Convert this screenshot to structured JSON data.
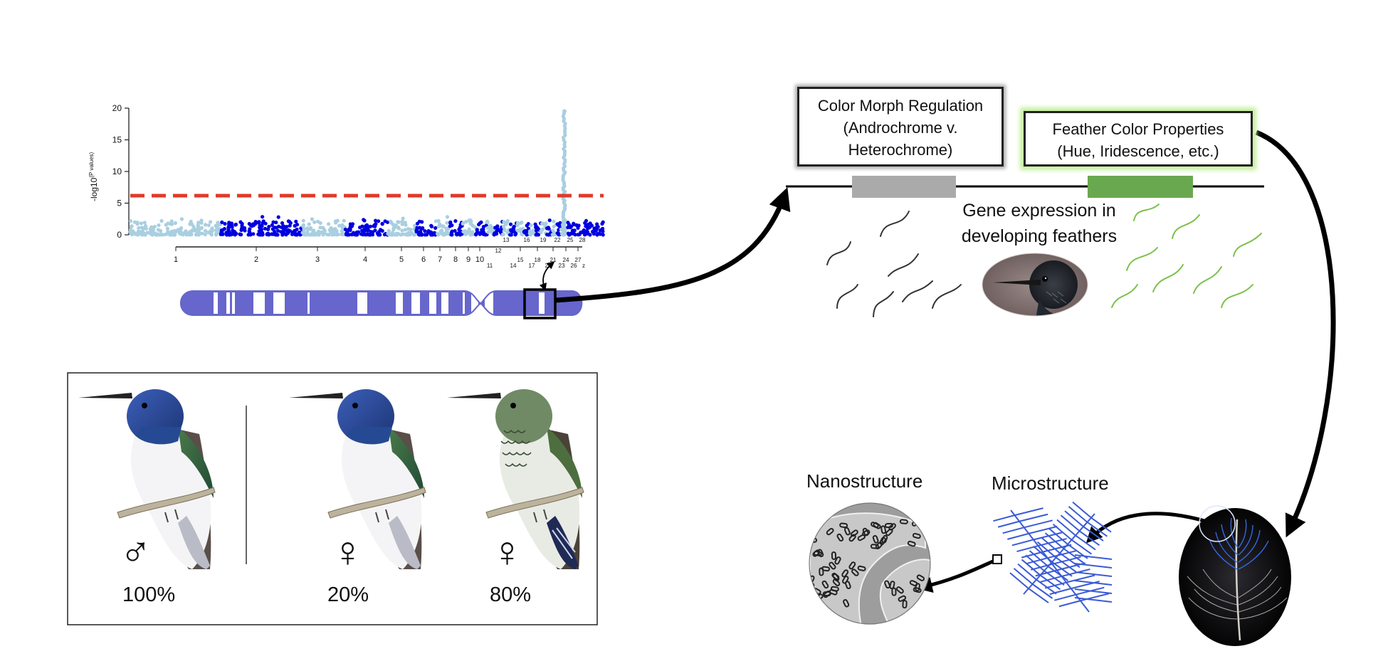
{
  "manhattan": {
    "ylabel": "-log10",
    "ylabel_sup": "(P values)",
    "y_ticks": [
      "0",
      "5",
      "10",
      "15",
      "20"
    ],
    "x_ticks": [
      "1",
      "2",
      "3",
      "4",
      "5",
      "6",
      "7",
      "8",
      "9",
      "10",
      "11",
      "12",
      "13",
      "14",
      "15",
      "16",
      "17",
      "18",
      "19",
      "20",
      "21",
      "22",
      "23",
      "24",
      "25",
      "26",
      "27",
      "28",
      "z"
    ]
  },
  "chart_data": {
    "type": "scatter",
    "title": "",
    "ylabel": "-log10(P values)",
    "ylim": [
      0,
      20
    ],
    "threshold": 6,
    "categories": [
      "1",
      "2",
      "3",
      "4",
      "5",
      "6",
      "7",
      "8",
      "9",
      "10",
      "11",
      "12",
      "13",
      "14",
      "15",
      "16",
      "17",
      "18",
      "19",
      "20",
      "21",
      "22",
      "23",
      "24",
      "25",
      "26",
      "27",
      "28",
      "z"
    ],
    "highlight_category": "27",
    "peak_value": 19.5,
    "colors": {
      "light": "#a9cfe0",
      "dark": "#0000e0",
      "threshold": "#e03a2a",
      "highlight_label": "#e03a2a"
    }
  },
  "boxes": {
    "morph_line1": "Color Morph Regulation",
    "morph_line2": "(Androchrome v.",
    "morph_line3": "Heterochrome)",
    "feather_line1": "Feather Color Properties",
    "feather_line2": "(Hue, Iridescence, etc.)"
  },
  "gene_expression": {
    "line1": "Gene expression in",
    "line2": "developing feathers"
  },
  "structures": {
    "nano": "Nanostructure",
    "micro": "Microstructure"
  },
  "morphs": [
    {
      "symbol": "♂",
      "percent": "100%"
    },
    {
      "symbol": "♀",
      "percent": "20%"
    },
    {
      "symbol": "♀",
      "percent": "80%"
    }
  ],
  "colors": {
    "chromosome": "#6666cc",
    "bar_gray": "#aaaaaa",
    "bar_green": "#6aa84f",
    "curl_dark": "#333333",
    "curl_green": "#7cc04a",
    "feather_blue": "#3a5bd6"
  }
}
